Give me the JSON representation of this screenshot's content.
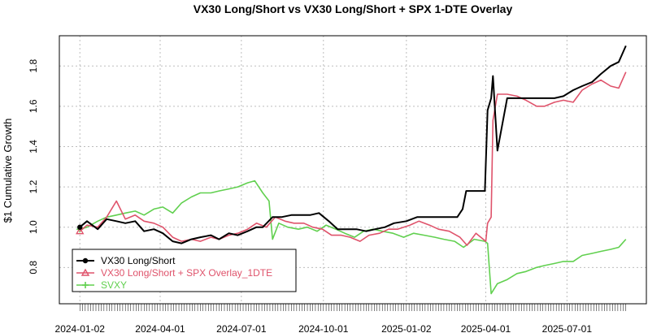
{
  "chart_data": {
    "type": "line",
    "title": "VX30 Long/Short vs VX30 Long/Short + SPX 1-DTE Overlay",
    "ylabel": "$1 Cumulative Growth",
    "xlabel": "",
    "xlim": [
      "2023-12-10",
      "2025-09-28"
    ],
    "ylim": [
      0.62,
      1.95
    ],
    "grid": true,
    "legend_position": "bottom-left",
    "x_tick_labels": [
      "2024-01-02",
      "2024-04-01",
      "2024-07-01",
      "2024-10-01",
      "2025-01-02",
      "2025-04-01",
      "2025-07-01"
    ],
    "y_tick_labels": [
      "0.8",
      "1.0",
      "1.2",
      "1.4",
      "1.6",
      "1.8"
    ],
    "x_ticks": [
      "2024-01-02",
      "2024-04-01",
      "2024-07-01",
      "2024-10-01",
      "2025-01-02",
      "2025-04-01",
      "2025-07-01"
    ],
    "y_ticks": [
      0.8,
      1.0,
      1.2,
      1.4,
      1.6,
      1.8
    ],
    "series": [
      {
        "name": "VX30 Long/Short",
        "color": "#000000",
        "marker": "circle",
        "x": [
          "2024-01-02",
          "2024-01-10",
          "2024-01-22",
          "2024-02-01",
          "2024-02-12",
          "2024-02-22",
          "2024-03-04",
          "2024-03-14",
          "2024-03-25",
          "2024-04-04",
          "2024-04-15",
          "2024-04-25",
          "2024-05-06",
          "2024-05-16",
          "2024-05-28",
          "2024-06-06",
          "2024-06-17",
          "2024-06-27",
          "2024-07-08",
          "2024-07-18",
          "2024-07-25",
          "2024-08-05",
          "2024-08-15",
          "2024-08-26",
          "2024-09-05",
          "2024-09-16",
          "2024-09-26",
          "2024-10-07",
          "2024-10-17",
          "2024-10-28",
          "2024-11-07",
          "2024-11-18",
          "2024-11-28",
          "2024-12-09",
          "2024-12-19",
          "2025-01-02",
          "2025-01-14",
          "2025-01-27",
          "2025-02-06",
          "2025-02-18",
          "2025-02-28",
          "2025-03-06",
          "2025-03-10",
          "2025-03-20",
          "2025-03-31",
          "2025-04-03",
          "2025-04-07",
          "2025-04-09",
          "2025-04-14",
          "2025-04-25",
          "2025-05-06",
          "2025-05-16",
          "2025-05-28",
          "2025-06-06",
          "2025-06-17",
          "2025-06-27",
          "2025-07-08",
          "2025-07-18",
          "2025-07-29",
          "2025-08-08",
          "2025-08-19",
          "2025-08-28",
          "2025-09-05"
        ],
        "y": [
          1.0,
          1.03,
          0.99,
          1.04,
          1.03,
          1.02,
          1.03,
          0.98,
          0.99,
          0.97,
          0.93,
          0.92,
          0.94,
          0.95,
          0.96,
          0.94,
          0.97,
          0.96,
          0.98,
          1.0,
          1.0,
          1.05,
          1.05,
          1.06,
          1.06,
          1.06,
          1.07,
          1.03,
          0.99,
          0.99,
          0.99,
          0.98,
          0.99,
          1.0,
          1.02,
          1.03,
          1.05,
          1.05,
          1.05,
          1.05,
          1.05,
          1.09,
          1.18,
          1.18,
          1.18,
          1.58,
          1.64,
          1.75,
          1.38,
          1.64,
          1.64,
          1.64,
          1.64,
          1.64,
          1.64,
          1.65,
          1.68,
          1.7,
          1.72,
          1.76,
          1.8,
          1.82,
          1.9
        ]
      },
      {
        "name": "VX30 Long/Short + SPX Overlay_1DTE",
        "color": "#df536b",
        "marker": "triangle",
        "x": [
          "2024-01-02",
          "2024-01-10",
          "2024-01-22",
          "2024-02-01",
          "2024-02-12",
          "2024-02-22",
          "2024-03-04",
          "2024-03-14",
          "2024-03-25",
          "2024-04-04",
          "2024-04-15",
          "2024-04-25",
          "2024-05-06",
          "2024-05-16",
          "2024-05-28",
          "2024-06-06",
          "2024-06-17",
          "2024-06-27",
          "2024-07-08",
          "2024-07-18",
          "2024-07-29",
          "2024-08-08",
          "2024-08-19",
          "2024-08-29",
          "2024-09-09",
          "2024-09-19",
          "2024-09-30",
          "2024-10-10",
          "2024-10-21",
          "2024-10-31",
          "2024-11-11",
          "2024-11-21",
          "2024-12-03",
          "2024-12-13",
          "2024-12-23",
          "2025-01-06",
          "2025-01-16",
          "2025-01-28",
          "2025-02-07",
          "2025-02-19",
          "2025-03-03",
          "2025-03-11",
          "2025-03-21",
          "2025-04-01",
          "2025-04-03",
          "2025-04-07",
          "2025-04-09",
          "2025-04-14",
          "2025-04-25",
          "2025-05-06",
          "2025-05-16",
          "2025-05-28",
          "2025-06-06",
          "2025-06-17",
          "2025-06-27",
          "2025-07-08",
          "2025-07-18",
          "2025-07-29",
          "2025-08-08",
          "2025-08-19",
          "2025-08-28",
          "2025-09-05"
        ],
        "y": [
          0.98,
          1.01,
          1.0,
          1.05,
          1.13,
          1.04,
          1.06,
          1.03,
          1.02,
          1.0,
          0.95,
          0.93,
          0.94,
          0.93,
          0.95,
          0.94,
          0.96,
          0.97,
          0.99,
          1.02,
          1.0,
          1.05,
          1.03,
          1.02,
          1.02,
          1.0,
          0.99,
          0.96,
          0.96,
          0.95,
          0.93,
          0.96,
          0.97,
          0.99,
          0.99,
          1.01,
          1.03,
          1.01,
          0.99,
          0.98,
          0.95,
          0.91,
          0.97,
          0.93,
          1.02,
          1.05,
          1.53,
          1.66,
          1.66,
          1.65,
          1.63,
          1.6,
          1.6,
          1.62,
          1.63,
          1.62,
          1.68,
          1.71,
          1.73,
          1.7,
          1.69,
          1.77
        ]
      },
      {
        "name": "SVXY",
        "color": "#61d04f",
        "marker": "plus",
        "x": [
          "2024-01-02",
          "2024-01-10",
          "2024-01-22",
          "2024-02-01",
          "2024-02-12",
          "2024-02-22",
          "2024-03-04",
          "2024-03-14",
          "2024-03-25",
          "2024-04-04",
          "2024-04-15",
          "2024-04-25",
          "2024-05-06",
          "2024-05-16",
          "2024-05-28",
          "2024-06-06",
          "2024-06-17",
          "2024-06-27",
          "2024-07-08",
          "2024-07-16",
          "2024-07-25",
          "2024-08-01",
          "2024-08-05",
          "2024-08-12",
          "2024-08-22",
          "2024-09-03",
          "2024-09-13",
          "2024-09-24",
          "2024-10-04",
          "2024-10-15",
          "2024-10-25",
          "2024-11-05",
          "2024-11-15",
          "2024-11-26",
          "2024-12-06",
          "2024-12-18",
          "2024-12-30",
          "2025-01-10",
          "2025-01-22",
          "2025-02-03",
          "2025-02-13",
          "2025-02-25",
          "2025-03-07",
          "2025-03-19",
          "2025-03-31",
          "2025-04-03",
          "2025-04-07",
          "2025-04-14",
          "2025-04-25",
          "2025-05-06",
          "2025-05-16",
          "2025-05-28",
          "2025-06-06",
          "2025-06-17",
          "2025-06-27",
          "2025-07-08",
          "2025-07-18",
          "2025-07-29",
          "2025-08-08",
          "2025-08-19",
          "2025-08-28",
          "2025-09-05"
        ],
        "y": [
          0.99,
          1.0,
          1.03,
          1.05,
          1.06,
          1.07,
          1.08,
          1.06,
          1.09,
          1.1,
          1.07,
          1.12,
          1.15,
          1.17,
          1.17,
          1.18,
          1.19,
          1.2,
          1.22,
          1.23,
          1.17,
          1.13,
          0.94,
          1.02,
          1.0,
          0.99,
          1.0,
          0.98,
          1.01,
          0.99,
          0.97,
          0.95,
          0.98,
          0.99,
          0.98,
          0.97,
          0.95,
          0.97,
          0.96,
          0.95,
          0.94,
          0.93,
          0.9,
          0.94,
          0.93,
          0.92,
          0.67,
          0.72,
          0.74,
          0.77,
          0.78,
          0.8,
          0.81,
          0.82,
          0.83,
          0.83,
          0.86,
          0.87,
          0.88,
          0.89,
          0.9,
          0.94
        ]
      }
    ]
  }
}
